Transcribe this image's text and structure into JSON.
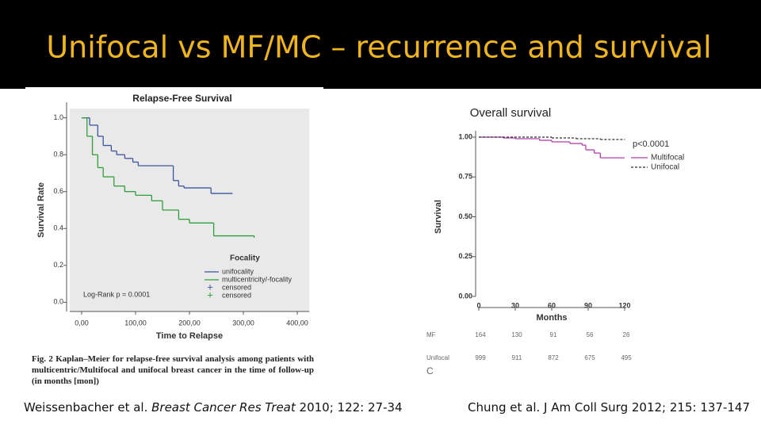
{
  "title": "Unifocal vs MF/MC – recurrence and survival",
  "chart_data": [
    {
      "type": "step",
      "title": "Relapse-Free Survival",
      "xlabel": "Time to Relapse",
      "ylabel": "Survival Rate",
      "xlim": [
        -22,
        422
      ],
      "ylim": [
        -0.05,
        1.05
      ],
      "xticks": [
        {
          "value": 0,
          "label": "0,00"
        },
        {
          "value": 100,
          "label": "100,00"
        },
        {
          "value": 200,
          "label": "200,00"
        },
        {
          "value": 300,
          "label": "300,00"
        },
        {
          "value": 400,
          "label": "400,00"
        }
      ],
      "yticks": [
        {
          "value": 0,
          "label": "0.0"
        },
        0.2,
        0.4,
        0.6,
        0.8,
        {
          "value": 1,
          "label": "1.0"
        }
      ],
      "legend_title": "Focality",
      "annotation": "Log-Rank p = 0.0001",
      "censored_label": "censored",
      "series": [
        {
          "name": "unifocality",
          "color": "#3b55a0",
          "x": [
            0,
            15,
            30,
            40,
            55,
            65,
            80,
            95,
            105,
            170,
            180,
            190,
            240,
            280
          ],
          "values": [
            1,
            0.96,
            0.9,
            0.85,
            0.82,
            0.8,
            0.78,
            0.76,
            0.74,
            0.66,
            0.63,
            0.62,
            0.59,
            0.59
          ]
        },
        {
          "name": "multicentricity/-focality",
          "color": "#2e9e3a",
          "x": [
            0,
            10,
            20,
            30,
            40,
            60,
            80,
            100,
            130,
            150,
            180,
            200,
            245,
            320
          ],
          "values": [
            1,
            0.9,
            0.8,
            0.73,
            0.68,
            0.63,
            0.6,
            0.58,
            0.55,
            0.5,
            0.45,
            0.43,
            0.36,
            0.35
          ]
        }
      ],
      "caption": "Fig. 2 Kaplan–Meier for relapse-free survival analysis among patients with multicentric/Multifocal and unifocal breast cancer in the time of follow-up (in months [mon])"
    },
    {
      "type": "step",
      "title": "Overall survival",
      "xlabel": "Months",
      "ylabel": "Survival",
      "xlim": [
        0,
        120
      ],
      "ylim": [
        0,
        1
      ],
      "xticks": [
        0,
        30,
        60,
        90,
        120
      ],
      "yticks": [
        {
          "value": 0,
          "label": "0.00"
        },
        {
          "value": 0.25,
          "label": "0.25"
        },
        {
          "value": 0.5,
          "label": "0.50"
        },
        {
          "value": 0.75,
          "label": "0.75"
        },
        {
          "value": 1,
          "label": "1.00"
        }
      ],
      "annotation": "p<0.0001",
      "panel_label": "C",
      "series": [
        {
          "name": "Multifocal",
          "color": "#b03cb0",
          "dash": false,
          "x": [
            0,
            20,
            30,
            50,
            60,
            75,
            85,
            88,
            95,
            100,
            120
          ],
          "values": [
            1,
            0.995,
            0.99,
            0.98,
            0.97,
            0.96,
            0.95,
            0.92,
            0.9,
            0.87,
            0.87
          ]
        },
        {
          "name": "Unifocal",
          "color": "#333333",
          "dash": true,
          "x": [
            0,
            60,
            80,
            100,
            120
          ],
          "values": [
            1,
            0.995,
            0.99,
            0.985,
            0.985
          ]
        }
      ],
      "risk_table": [
        {
          "label": "MF",
          "values": [
            164,
            130,
            91,
            56,
            26
          ]
        },
        {
          "label": "Unifocal",
          "values": [
            999,
            911,
            872,
            675,
            495
          ]
        }
      ]
    }
  ],
  "citations": [
    {
      "before": "Weissenbacher et al. ",
      "italic": "Breast Cancer Res Treat",
      "after": " 2010; 122: 27-34"
    },
    {
      "before": "Chung et al. J Am Coll Surg 2012; 215: 137-147"
    }
  ]
}
